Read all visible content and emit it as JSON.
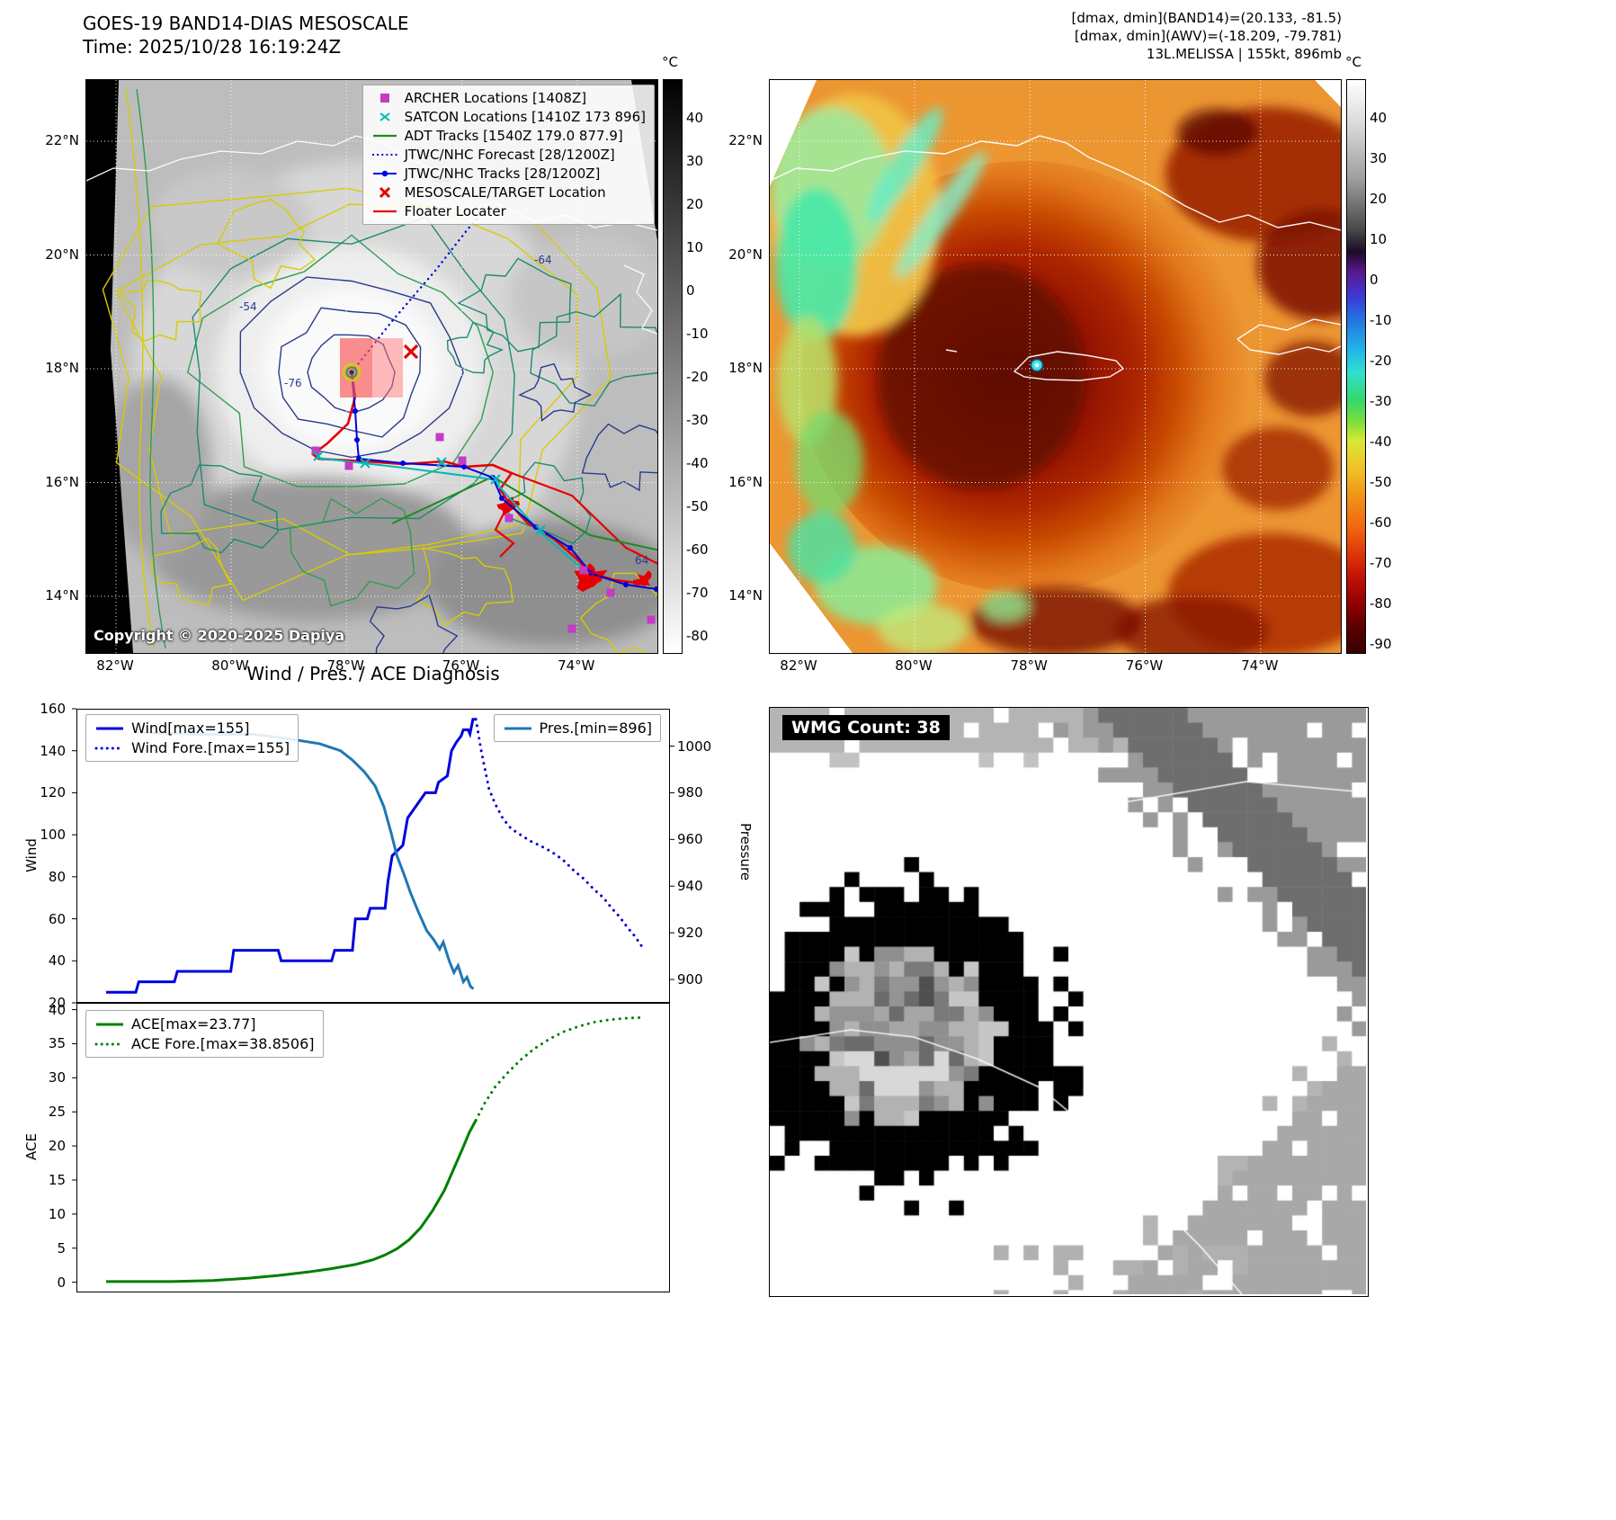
{
  "panel_band14": {
    "title_line1": "GOES-19 BAND14-DIAS MESOSCALE",
    "title_line2": "Time: 2025/10/28 16:19:24Z",
    "copyright": "Copyright © 2020-2025 Dapiya",
    "legend": [
      {
        "label": "ARCHER Locations [1408Z]",
        "marker": "square",
        "color": "#c43bc4"
      },
      {
        "label": "SATCON Locations [1410Z 173 896]",
        "marker": "x",
        "color": "#00b8b8"
      },
      {
        "label": "ADT Tracks [1540Z 179.0 877.9]",
        "marker": "line",
        "color": "#1e8a1e"
      },
      {
        "label": "JTWC/NHC Forecast [28/1200Z]",
        "marker": "dotted-line",
        "color": "#0000e0"
      },
      {
        "label": "JTWC/NHC Tracks [28/1200Z]",
        "marker": "line-dot",
        "color": "#0000e0"
      },
      {
        "label": "MESOSCALE/TARGET Location",
        "marker": "x-bold",
        "color": "#e60000"
      },
      {
        "label": "Floater Locater",
        "marker": "line",
        "color": "#e60000"
      }
    ],
    "lat_ticks": [
      "22°N",
      "20°N",
      "18°N",
      "16°N",
      "14°N"
    ],
    "lon_ticks": [
      "82°W",
      "80°W",
      "78°W",
      "76°W",
      "74°W"
    ],
    "colorbar_unit": "°C",
    "colorbar_ticks": [
      "40",
      "30",
      "20",
      "10",
      "0",
      "-10",
      "-20",
      "-30",
      "-40",
      "-50",
      "-60",
      "-70",
      "-80"
    ],
    "contour_labels": [
      "-54",
      "-76",
      "-64",
      "-64",
      "64",
      "31"
    ]
  },
  "panel_ir": {
    "header_lines": [
      "[dmax, dmin](BAND14)=(20.133, -81.5)",
      "[dmax, dmin](AWV)=(-18.209, -79.781)",
      "13L.MELISSA | 155kt, 896mb"
    ],
    "lat_ticks": [
      "22°N",
      "20°N",
      "18°N",
      "16°N",
      "14°N"
    ],
    "lon_ticks": [
      "82°W",
      "80°W",
      "78°W",
      "76°W",
      "74°W"
    ],
    "colorbar_unit": "°C",
    "colorbar_ticks": [
      "40",
      "30",
      "20",
      "10",
      "0",
      "-10",
      "-20",
      "-30",
      "-40",
      "-50",
      "-60",
      "-70",
      "-80",
      "-90"
    ]
  },
  "diagnosis": {
    "title": "Wind / Pres. / ACE Diagnosis",
    "ylabel_wind": "Wind",
    "ylabel_pressure": "Pressure",
    "ylabel_ace": "ACE"
  },
  "wmg": {
    "badge": "WMG Count: 38"
  },
  "chart_data": [
    {
      "type": "line",
      "title": "Wind / Pres. / ACE Diagnosis",
      "x_mode": "fraction_of_width",
      "ylim_left": [
        20,
        160
      ],
      "ylim_right": [
        890,
        1016
      ],
      "yticks_left": [
        20,
        40,
        60,
        80,
        100,
        120,
        140,
        160
      ],
      "yticks_right": [
        900,
        920,
        940,
        960,
        980,
        1000
      ],
      "series": [
        {
          "name": "Wind",
          "legend_label": "Wind[max=155]",
          "axis": "left",
          "style": "solid",
          "color": "#0000e0",
          "width": 3,
          "points": [
            [
              0.05,
              25
            ],
            [
              0.1,
              25
            ],
            [
              0.105,
              30
            ],
            [
              0.165,
              30
            ],
            [
              0.17,
              35
            ],
            [
              0.26,
              35
            ],
            [
              0.265,
              45
            ],
            [
              0.34,
              45
            ],
            [
              0.345,
              40
            ],
            [
              0.43,
              40
            ],
            [
              0.435,
              45
            ],
            [
              0.465,
              45
            ],
            [
              0.47,
              60
            ],
            [
              0.49,
              60
            ],
            [
              0.495,
              65
            ],
            [
              0.52,
              65
            ],
            [
              0.525,
              78
            ],
            [
              0.532,
              90
            ],
            [
              0.55,
              95
            ],
            [
              0.558,
              108
            ],
            [
              0.568,
              112
            ],
            [
              0.578,
              116
            ],
            [
              0.588,
              120
            ],
            [
              0.605,
              120
            ],
            [
              0.61,
              125
            ],
            [
              0.625,
              128
            ],
            [
              0.632,
              140
            ],
            [
              0.64,
              144
            ],
            [
              0.648,
              147
            ],
            [
              0.652,
              150
            ],
            [
              0.66,
              150
            ],
            [
              0.663,
              148
            ],
            [
              0.668,
              155
            ],
            [
              0.673,
              155
            ]
          ]
        },
        {
          "name": "Wind Fore.",
          "legend_label": "Wind Fore.[max=155]",
          "axis": "left",
          "style": "dotted",
          "color": "#0000e0",
          "width": 3,
          "points": [
            [
              0.673,
              155
            ],
            [
              0.682,
              140
            ],
            [
              0.695,
              122
            ],
            [
              0.705,
              115
            ],
            [
              0.718,
              108
            ],
            [
              0.732,
              103
            ],
            [
              0.748,
              100
            ],
            [
              0.765,
              97
            ],
            [
              0.78,
              95
            ],
            [
              0.8,
              92
            ],
            [
              0.82,
              88
            ],
            [
              0.838,
              83
            ],
            [
              0.855,
              79
            ],
            [
              0.872,
              74
            ],
            [
              0.888,
              70
            ],
            [
              0.902,
              65
            ],
            [
              0.915,
              61
            ],
            [
              0.928,
              56
            ],
            [
              0.94,
              52
            ],
            [
              0.95,
              48
            ],
            [
              0.957,
              45
            ]
          ]
        },
        {
          "name": "Pres.",
          "legend_label": "Pres.[min=896]",
          "axis": "right",
          "style": "solid",
          "color": "#1f77b4",
          "width": 3,
          "points": [
            [
              0.1,
              1006
            ],
            [
              0.2,
              1005
            ],
            [
              0.3,
              1005
            ],
            [
              0.36,
              1003
            ],
            [
              0.41,
              1001
            ],
            [
              0.445,
              998
            ],
            [
              0.465,
              994
            ],
            [
              0.485,
              989
            ],
            [
              0.503,
              983
            ],
            [
              0.518,
              974
            ],
            [
              0.53,
              963
            ],
            [
              0.54,
              953
            ],
            [
              0.552,
              945
            ],
            [
              0.563,
              937
            ],
            [
              0.576,
              929
            ],
            [
              0.59,
              921
            ],
            [
              0.602,
              917
            ],
            [
              0.612,
              913
            ],
            [
              0.618,
              916
            ],
            [
              0.628,
              908
            ],
            [
              0.636,
              903
            ],
            [
              0.643,
              906
            ],
            [
              0.652,
              899
            ],
            [
              0.658,
              901
            ],
            [
              0.664,
              897
            ],
            [
              0.669,
              896
            ]
          ]
        }
      ]
    },
    {
      "type": "line",
      "x_mode": "fraction_of_width",
      "ylim": [
        -1.5,
        41
      ],
      "yticks": [
        0,
        5,
        10,
        15,
        20,
        25,
        30,
        35,
        40
      ],
      "series": [
        {
          "name": "ACE",
          "legend_label": "ACE[max=23.77]",
          "style": "solid",
          "color": "#007f00",
          "width": 3,
          "points": [
            [
              0.05,
              0.1
            ],
            [
              0.16,
              0.1
            ],
            [
              0.23,
              0.25
            ],
            [
              0.29,
              0.6
            ],
            [
              0.34,
              1.0
            ],
            [
              0.39,
              1.5
            ],
            [
              0.43,
              2.0
            ],
            [
              0.47,
              2.6
            ],
            [
              0.5,
              3.3
            ],
            [
              0.52,
              4.0
            ],
            [
              0.54,
              4.9
            ],
            [
              0.56,
              6.2
            ],
            [
              0.58,
              8.0
            ],
            [
              0.6,
              10.5
            ],
            [
              0.62,
              13.5
            ],
            [
              0.635,
              16.5
            ],
            [
              0.65,
              19.5
            ],
            [
              0.662,
              22.0
            ],
            [
              0.673,
              23.77
            ]
          ]
        },
        {
          "name": "ACE Fore.",
          "legend_label": "ACE Fore.[max=38.8506]",
          "style": "dotted",
          "color": "#007f00",
          "width": 3,
          "points": [
            [
              0.673,
              23.77
            ],
            [
              0.688,
              26.3
            ],
            [
              0.705,
              28.6
            ],
            [
              0.725,
              30.6
            ],
            [
              0.748,
              32.6
            ],
            [
              0.772,
              34.3
            ],
            [
              0.797,
              35.7
            ],
            [
              0.822,
              36.8
            ],
            [
              0.848,
              37.6
            ],
            [
              0.874,
              38.2
            ],
            [
              0.9,
              38.55
            ],
            [
              0.928,
              38.75
            ],
            [
              0.955,
              38.85
            ]
          ]
        }
      ]
    }
  ]
}
